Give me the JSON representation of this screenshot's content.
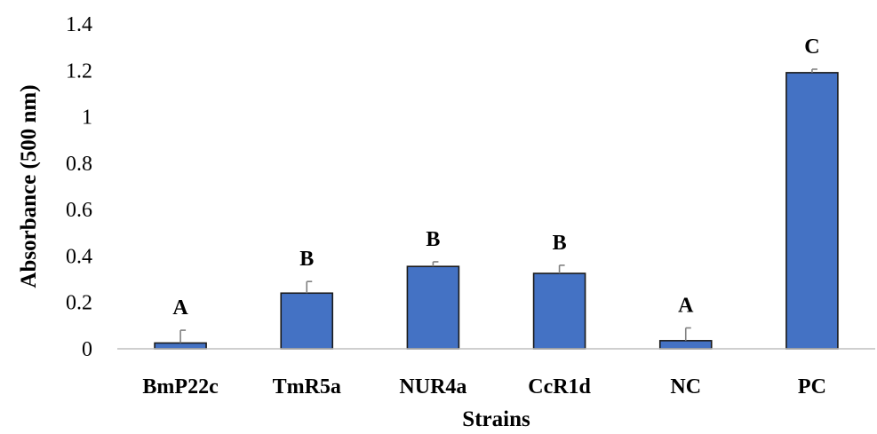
{
  "chart_data": {
    "type": "bar",
    "title": "",
    "xlabel": "Strains",
    "ylabel": "Absorbance (500 nm)",
    "ylim": [
      0,
      1.4
    ],
    "yticks": [
      0,
      0.2,
      0.4,
      0.6,
      0.8,
      1,
      1.2,
      1.4
    ],
    "ytick_labels": [
      "0",
      "0.2",
      "0.4",
      "0.6",
      "0.8",
      "1",
      "1.2",
      "1.4"
    ],
    "grid": false,
    "legend": "none",
    "bar_color": "#4472C4",
    "error_bar_color": "#808080",
    "categories": [
      "BmP22c",
      "TmR5a",
      "NUR4a",
      "CcR1d",
      "NC",
      "PC"
    ],
    "values": [
      0.025,
      0.24,
      0.355,
      0.325,
      0.035,
      1.19
    ],
    "errors": [
      0.055,
      0.05,
      0.02,
      0.035,
      0.055,
      0.015
    ],
    "significance_letters": [
      "A",
      "B",
      "B",
      "B",
      "A",
      "C"
    ]
  }
}
